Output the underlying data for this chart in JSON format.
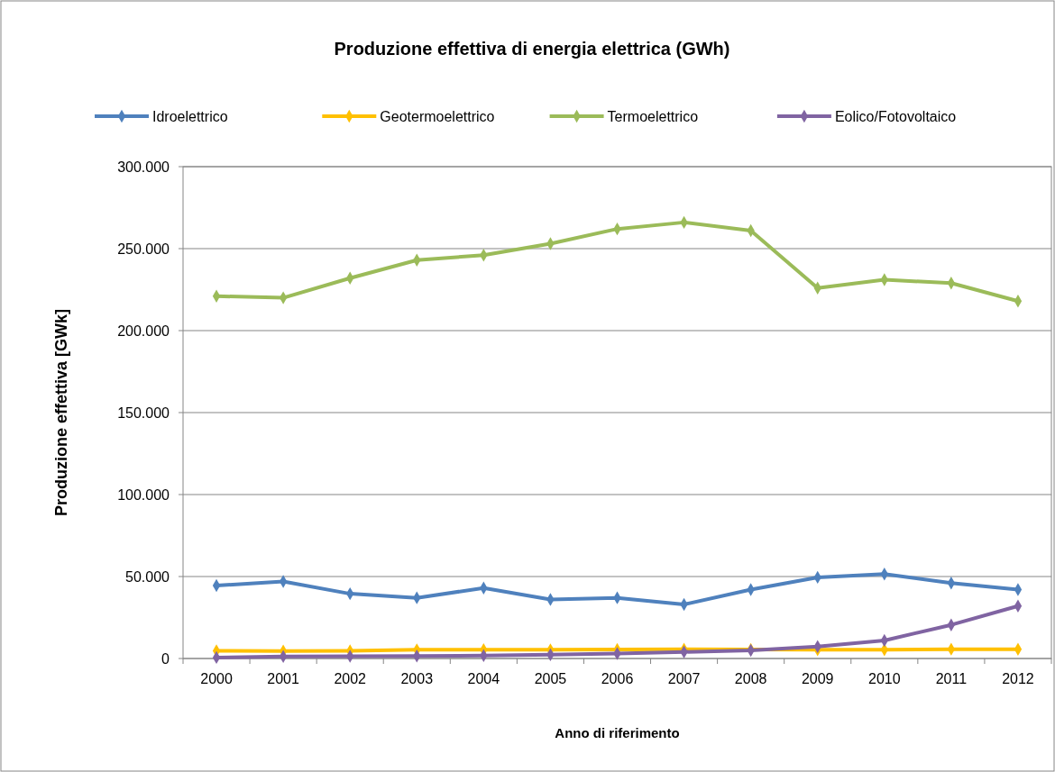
{
  "chart_data": {
    "type": "line",
    "title": "Produzione effettiva di energia elettrica (GWh)",
    "xlabel": "Anno di riferimento",
    "ylabel": "Produzione effettiva  [GWk]",
    "categories": [
      "2000",
      "2001",
      "2002",
      "2003",
      "2004",
      "2005",
      "2006",
      "2007",
      "2008",
      "2009",
      "2010",
      "2011",
      "2012"
    ],
    "series": [
      {
        "name": "Idroelettrico",
        "color": "#4f81bd",
        "values": [
          44500,
          47000,
          39500,
          37000,
          43000,
          36000,
          37000,
          33000,
          42000,
          49500,
          51500,
          46000,
          42000
        ]
      },
      {
        "name": "Geotermoelettrico",
        "color": "#ffc000",
        "values": [
          4700,
          4500,
          4700,
          5300,
          5400,
          5300,
          5500,
          5600,
          5500,
          5300,
          5400,
          5700,
          5600
        ]
      },
      {
        "name": "Termoelettrico",
        "color": "#9bbb59",
        "values": [
          221000,
          220000,
          232000,
          243000,
          246000,
          253000,
          262000,
          266000,
          261000,
          226000,
          231000,
          229000,
          218000
        ]
      },
      {
        "name": "Eolico/Fotovoltaico",
        "color": "#8064a2",
        "values": [
          600,
          1200,
          1400,
          1500,
          1800,
          2300,
          3000,
          4000,
          4900,
          7300,
          11000,
          20500,
          32000
        ]
      }
    ],
    "ylim": [
      0,
      300000
    ],
    "yticks": [
      0,
      {
        "value": 50000,
        "label": "50.000"
      },
      {
        "value": 100000,
        "label": "100.000"
      },
      {
        "value": 150000,
        "label": "150.000"
      },
      {
        "value": 200000,
        "label": "200.000"
      },
      {
        "value": 250000,
        "label": "250.000"
      },
      {
        "value": 300000,
        "label": "300.000"
      }
    ],
    "grid": "y",
    "legend": "top",
    "marker": "diamond",
    "line_style": "solid"
  }
}
